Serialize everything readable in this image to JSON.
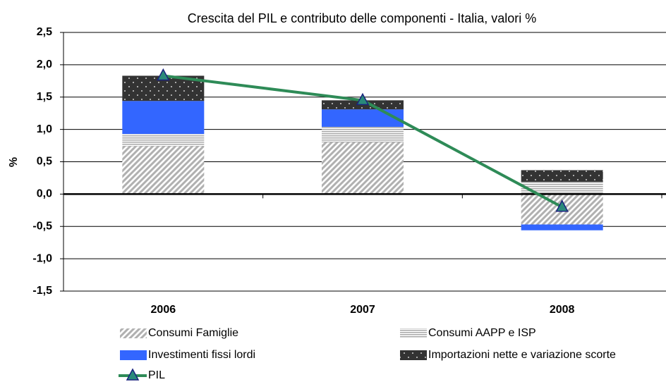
{
  "chart_data": {
    "type": "bar",
    "title": "Crescita del PIL e contributo delle componenti - Italia, valori %",
    "y_label": "%",
    "categories": [
      "2006",
      "2007",
      "2008"
    ],
    "series": [
      {
        "name": "Consumi Famiglie",
        "type": "bar",
        "pattern": "diagonal",
        "color": "#b0b0b0",
        "values": [
          0.74,
          0.8,
          -0.47
        ]
      },
      {
        "name": "Consumi AAPP e ISP",
        "type": "bar",
        "pattern": "horizontal",
        "color": "#a8a8a8",
        "values": [
          0.19,
          0.24,
          0.19
        ]
      },
      {
        "name": "Investimenti fissi lordi",
        "type": "bar",
        "pattern": "solid",
        "color": "#3366ff",
        "values": [
          0.51,
          0.27,
          -0.09
        ]
      },
      {
        "name": "Importazioni nette e variazione scorte",
        "type": "bar",
        "pattern": "dots",
        "color": "#333333",
        "values": [
          0.39,
          0.14,
          0.18
        ]
      },
      {
        "name": "PIL",
        "type": "line",
        "color": "#2e8b57",
        "marker_color": "#2a8a7a",
        "values": [
          1.83,
          1.45,
          -0.2
        ]
      }
    ],
    "ylim": [
      -1.5,
      2.5
    ],
    "yticks": [
      {
        "value": -1.5,
        "label": "-1,5"
      },
      {
        "value": -1,
        "label": "-1,0"
      },
      {
        "value": -0.5,
        "label": "-0,5"
      },
      {
        "value": 0,
        "label": "0,0"
      },
      {
        "value": 0.5,
        "label": "0,5"
      },
      {
        "value": 1,
        "label": "1,0"
      },
      {
        "value": 1.5,
        "label": "1,5"
      },
      {
        "value": 2,
        "label": "2,0"
      },
      {
        "value": 2.5,
        "label": "2,5"
      }
    ],
    "grid": true
  }
}
